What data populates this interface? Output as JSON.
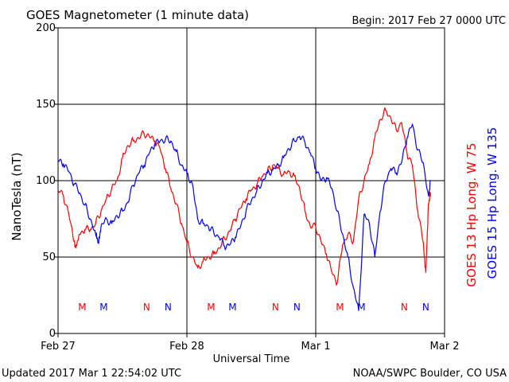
{
  "chart_data": {
    "type": "line",
    "title": "GOES Magnetometer (1 minute data)",
    "begin_label": "Begin:  2017 Feb 27 0000 UTC",
    "xlabel": "Universal Time",
    "ylabel": "NanoTesla (nT)",
    "ylim": [
      0,
      200
    ],
    "xlim_hours": [
      0,
      72
    ],
    "yticks": [
      "0",
      "50",
      "100",
      "150",
      "200"
    ],
    "xticks": [
      {
        "hour": 0,
        "label": "Feb 27"
      },
      {
        "hour": 24,
        "label": "Feb 28"
      },
      {
        "hour": 48,
        "label": "Mar 1"
      },
      {
        "hour": 72,
        "label": "Mar 2"
      }
    ],
    "grid": true,
    "footer_left": "Updated 2017 Mar  1 22:54:02 UTC",
    "footer_right": "NOAA/SWPC Boulder, CO USA",
    "series": [
      {
        "name": "GOES 13 Hp  Long. W 75",
        "color": "#ff0000",
        "markers": [
          {
            "hour": 4.5,
            "label": "M"
          },
          {
            "hour": 16.5,
            "label": "N"
          },
          {
            "hour": 28.5,
            "label": "M"
          },
          {
            "hour": 40.5,
            "label": "N"
          },
          {
            "hour": 52.5,
            "label": "M"
          },
          {
            "hour": 64.5,
            "label": "N"
          }
        ],
        "points": [
          [
            0,
            94
          ],
          [
            1,
            90
          ],
          [
            2,
            78
          ],
          [
            3,
            60
          ],
          [
            3.3,
            56
          ],
          [
            4,
            65
          ],
          [
            5,
            68
          ],
          [
            6,
            68
          ],
          [
            7,
            72
          ],
          [
            8,
            80
          ],
          [
            9,
            88
          ],
          [
            10,
            95
          ],
          [
            11,
            100
          ],
          [
            12,
            115
          ],
          [
            13,
            123
          ],
          [
            14,
            126
          ],
          [
            15,
            128
          ],
          [
            16,
            131
          ],
          [
            17,
            129
          ],
          [
            18,
            126
          ],
          [
            19,
            121
          ],
          [
            20,
            108
          ],
          [
            21,
            95
          ],
          [
            22,
            85
          ],
          [
            23,
            72
          ],
          [
            24,
            60
          ],
          [
            25,
            50
          ],
          [
            26,
            43
          ],
          [
            27,
            47
          ],
          [
            28,
            50
          ],
          [
            29,
            52
          ],
          [
            30,
            56
          ],
          [
            31,
            62
          ],
          [
            32,
            67
          ],
          [
            33,
            75
          ],
          [
            34,
            82
          ],
          [
            35,
            88
          ],
          [
            36,
            94
          ],
          [
            37,
            97
          ],
          [
            38,
            103
          ],
          [
            39,
            106
          ],
          [
            40,
            110
          ],
          [
            41,
            108
          ],
          [
            42,
            104
          ],
          [
            43,
            106
          ],
          [
            44,
            103
          ],
          [
            45,
            95
          ],
          [
            46,
            80
          ],
          [
            47,
            70
          ],
          [
            48,
            70
          ],
          [
            49,
            60
          ],
          [
            50,
            52
          ],
          [
            51,
            40
          ],
          [
            52,
            33
          ],
          [
            53,
            58
          ],
          [
            54,
            65
          ],
          [
            55,
            60
          ],
          [
            56,
            88
          ],
          [
            57,
            100
          ],
          [
            58,
            111
          ],
          [
            59,
            128
          ],
          [
            60,
            140
          ],
          [
            61,
            146
          ],
          [
            62,
            141
          ],
          [
            63,
            133
          ],
          [
            64,
            138
          ],
          [
            65,
            118
          ],
          [
            66,
            110
          ],
          [
            67,
            80
          ],
          [
            68,
            60
          ],
          [
            68.5,
            40
          ],
          [
            69,
            85
          ],
          [
            69.4,
            92
          ]
        ]
      },
      {
        "name": "GOES 15 Hp  Long. W 135",
        "color": "#0000ff",
        "markers": [
          {
            "hour": 8.5,
            "label": "M"
          },
          {
            "hour": 20.5,
            "label": "N"
          },
          {
            "hour": 32.5,
            "label": "M"
          },
          {
            "hour": 44.5,
            "label": "N"
          },
          {
            "hour": 56.5,
            "label": "M"
          },
          {
            "hour": 68.5,
            "label": "N"
          }
        ],
        "points": [
          [
            0,
            113
          ],
          [
            1,
            111
          ],
          [
            2,
            106
          ],
          [
            3,
            98
          ],
          [
            4,
            92
          ],
          [
            5,
            84
          ],
          [
            6,
            75
          ],
          [
            7,
            65
          ],
          [
            7.5,
            60
          ],
          [
            8,
            70
          ],
          [
            9,
            75
          ],
          [
            10,
            72
          ],
          [
            11,
            77
          ],
          [
            12,
            80
          ],
          [
            13,
            86
          ],
          [
            14,
            97
          ],
          [
            15,
            105
          ],
          [
            16,
            110
          ],
          [
            17,
            118
          ],
          [
            18,
            124
          ],
          [
            19,
            126
          ],
          [
            20,
            127
          ],
          [
            21,
            126
          ],
          [
            22,
            119
          ],
          [
            23,
            110
          ],
          [
            24,
            105
          ],
          [
            25,
            98
          ],
          [
            26,
            75
          ],
          [
            27,
            72
          ],
          [
            28,
            70
          ],
          [
            29,
            66
          ],
          [
            30,
            63
          ],
          [
            31,
            57
          ],
          [
            32,
            58
          ],
          [
            33,
            63
          ],
          [
            34,
            70
          ],
          [
            35,
            80
          ],
          [
            36,
            87
          ],
          [
            37,
            93
          ],
          [
            38,
            99
          ],
          [
            39,
            105
          ],
          [
            40,
            107
          ],
          [
            41,
            110
          ],
          [
            42,
            115
          ],
          [
            43,
            121
          ],
          [
            44,
            126
          ],
          [
            45,
            129
          ],
          [
            46,
            125
          ],
          [
            47,
            118
          ],
          [
            48,
            108
          ],
          [
            49,
            100
          ],
          [
            50,
            102
          ],
          [
            51,
            95
          ],
          [
            52,
            80
          ],
          [
            53,
            65
          ],
          [
            54,
            50
          ],
          [
            55,
            30
          ],
          [
            56,
            15
          ],
          [
            57,
            78
          ],
          [
            58,
            72
          ],
          [
            59,
            50
          ],
          [
            60,
            80
          ],
          [
            61,
            100
          ],
          [
            62,
            108
          ],
          [
            63,
            105
          ],
          [
            64,
            112
          ],
          [
            65,
            128
          ],
          [
            66,
            137
          ],
          [
            67,
            120
          ],
          [
            68,
            112
          ],
          [
            69,
            90
          ],
          [
            69.4,
            100
          ]
        ]
      }
    ]
  }
}
